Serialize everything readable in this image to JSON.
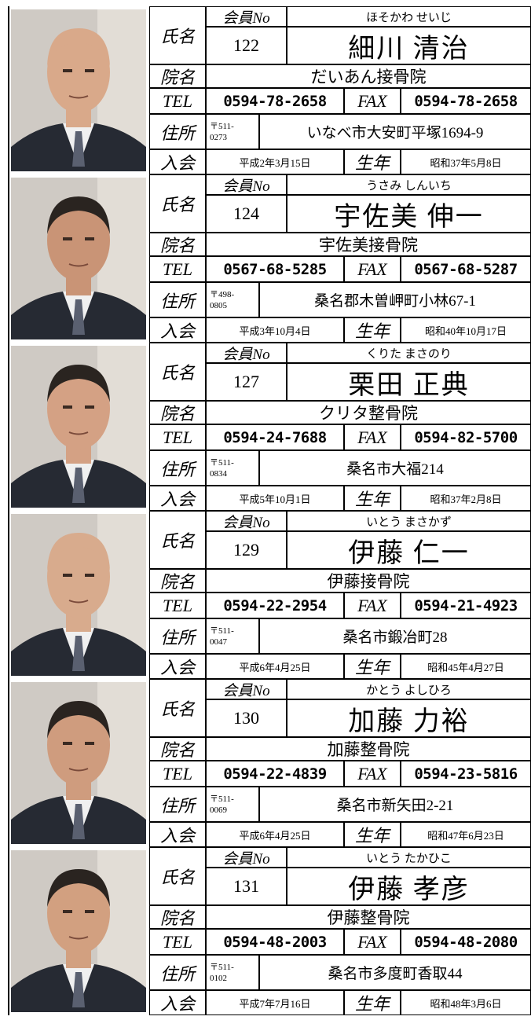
{
  "labels": {
    "name": "氏名",
    "member_no": "会員No",
    "clinic": "院名",
    "tel": "TEL",
    "fax": "FAX",
    "address": "住所",
    "joined": "入会",
    "born": "生年"
  },
  "members": [
    {
      "kana": "ほそかわ せいじ",
      "member_no": "122",
      "name": "細川 清治",
      "clinic": "だいあん接骨院",
      "tel": "0594-78-2658",
      "fax": "0594-78-2658",
      "postal_1": "〒511-",
      "postal_2": "0273",
      "address": "いなべ市大安町平塚1694-9",
      "joined": "平成2年3月15日",
      "born": "昭和37年5月8日"
    },
    {
      "kana": "うさみ しんいち",
      "member_no": "124",
      "name": "宇佐美 伸一",
      "clinic": "宇佐美接骨院",
      "tel": "0567-68-5285",
      "fax": "0567-68-5287",
      "postal_1": "〒498-",
      "postal_2": "0805",
      "address": "桑名郡木曽岬町小林67-1",
      "joined": "平成3年10月4日",
      "born": "昭和40年10月17日"
    },
    {
      "kana": "くりた まさのり",
      "member_no": "127",
      "name": "栗田 正典",
      "clinic": "クリタ整骨院",
      "tel": "0594-24-7688",
      "fax": "0594-82-5700",
      "postal_1": "〒511-",
      "postal_2": "0834",
      "address": "桑名市大福214",
      "joined": "平成5年10月1日",
      "born": "昭和37年2月8日"
    },
    {
      "kana": "いとう まさかず",
      "member_no": "129",
      "name": "伊藤 仁一",
      "clinic": "伊藤接骨院",
      "tel": "0594-22-2954",
      "fax": "0594-21-4923",
      "postal_1": "〒511-",
      "postal_2": "0047",
      "address": "桑名市鍛冶町28",
      "joined": "平成6年4月25日",
      "born": "昭和45年4月27日"
    },
    {
      "kana": "かとう よしひろ",
      "member_no": "130",
      "name": "加藤 力裕",
      "clinic": "加藤整骨院",
      "tel": "0594-22-4839",
      "fax": "0594-23-5816",
      "postal_1": "〒511-",
      "postal_2": "0069",
      "address": "桑名市新矢田2-21",
      "joined": "平成6年4月25日",
      "born": "昭和47年6月23日"
    },
    {
      "kana": "いとう たかひこ",
      "member_no": "131",
      "name": "伊藤 孝彦",
      "clinic": "伊藤整骨院",
      "tel": "0594-48-2003",
      "fax": "0594-48-2080",
      "postal_1": "〒511-",
      "postal_2": "0102",
      "address": "桑名市多度町香取44",
      "joined": "平成7年7月16日",
      "born": "昭和48年3月6日"
    }
  ]
}
